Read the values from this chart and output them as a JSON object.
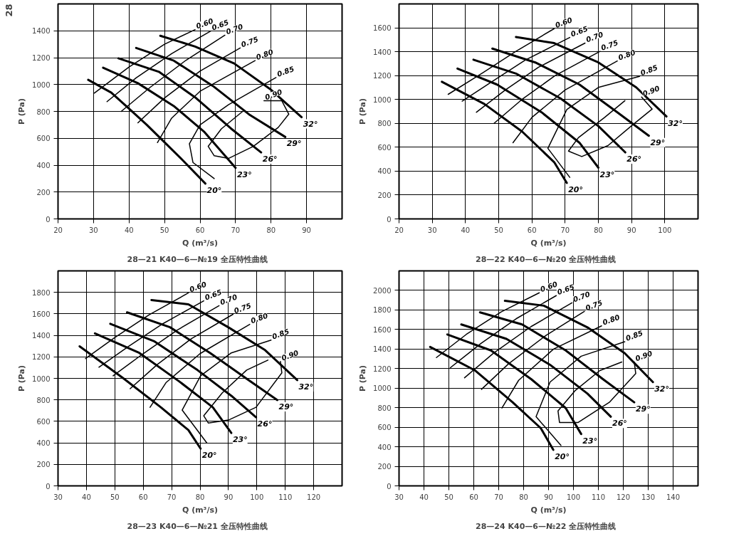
{
  "chart_data": [
    {
      "type": "line",
      "title": "28—21  K40—6—№19  全压特性曲线",
      "xlabel": "Q (m³/s)",
      "ylabel": "P (Pa)",
      "xlim": [
        20,
        100
      ],
      "ylim": [
        0,
        1600
      ],
      "xticks": [
        20,
        30,
        40,
        50,
        60,
        70,
        80,
        90
      ],
      "yticks": [
        0,
        200,
        400,
        600,
        800,
        1000,
        1200,
        1400
      ],
      "grid": true,
      "annotations": [
        "28"
      ],
      "series": [
        {
          "name": "20°",
          "color": "#000000",
          "x": [
            28.5,
            35,
            40,
            45,
            50,
            55,
            61.5
          ],
          "values": [
            1035,
            940,
            820,
            700,
            570,
            440,
            263
          ]
        },
        {
          "name": "23°",
          "color": "#000000",
          "x": [
            32.7,
            42.5,
            52.6,
            61.1,
            70
          ],
          "values": [
            1125,
            1010,
            840,
            650,
            380
          ]
        },
        {
          "name": "26°",
          "color": "#000000",
          "x": [
            37,
            48.4,
            58.6,
            68.7,
            77.2
          ],
          "values": [
            1195,
            1095,
            905,
            673,
            495
          ]
        },
        {
          "name": "29°",
          "color": "#000000",
          "x": [
            42,
            52.6,
            63.6,
            73.8,
            84
          ],
          "values": [
            1272,
            1178,
            990,
            778,
            610
          ]
        },
        {
          "name": "32°",
          "color": "#000000",
          "x": [
            48.8,
            58.6,
            69.6,
            79.7,
            88.6
          ],
          "values": [
            1363,
            1283,
            1157,
            967,
            757
          ]
        },
        {
          "name": "0.60",
          "color": "#000000",
          "x": [
            30.2,
            40,
            50,
            58.6
          ],
          "values": [
            936,
            1130,
            1300,
            1409
          ]
        },
        {
          "name": "0.65",
          "color": "#000000",
          "x": [
            33.8,
            42,
            52,
            63
          ],
          "values": [
            873,
            1050,
            1230,
            1398
          ]
        },
        {
          "name": "0.70",
          "color": "#000000",
          "x": [
            37.8,
            46,
            56,
            67
          ],
          "values": [
            800,
            980,
            1180,
            1367
          ]
        },
        {
          "name": "0.75",
          "color": "#000000",
          "x": [
            42.5,
            50,
            60,
            71.3
          ],
          "values": [
            715,
            900,
            1100,
            1272
          ]
        },
        {
          "name": "0.80",
          "color": "#000000",
          "x": [
            48,
            52,
            60,
            75.5
          ],
          "values": [
            568,
            750,
            950,
            1178
          ]
        },
        {
          "name": "0.85",
          "color": "#000000",
          "x": [
            64,
            58,
            57,
            60,
            68,
            81.4
          ],
          "values": [
            300,
            420,
            560,
            700,
            850,
            1052
          ]
        },
        {
          "name": "0.90",
          "color": "#000000",
          "x": [
            72,
            66,
            62.3,
            64,
            68,
            75,
            82,
            85,
            83,
            78
          ],
          "values": [
            800,
            670,
            540,
            470,
            450,
            540,
            680,
            780,
            880,
            880
          ]
        }
      ]
    },
    {
      "type": "line",
      "title": "28—22  K40—6—№20  全压特性曲线",
      "xlabel": "Q (m³/s)",
      "ylabel": "P (Pa)",
      "xlim": [
        20,
        110
      ],
      "ylim": [
        0,
        1800
      ],
      "xticks": [
        20,
        30,
        40,
        50,
        60,
        70,
        80,
        90,
        100
      ],
      "yticks": [
        0,
        200,
        400,
        600,
        800,
        1000,
        1200,
        1400,
        1600
      ],
      "grid": true,
      "series": [
        {
          "name": "20°",
          "color": "#000000",
          "x": [
            32.9,
            45.7,
            57.1,
            66.7,
            70.5
          ],
          "values": [
            1148,
            962,
            730,
            475,
            301
          ]
        },
        {
          "name": "23°",
          "color": "#000000",
          "x": [
            37.6,
            49.5,
            62.9,
            74.3,
            80
          ],
          "values": [
            1259,
            1125,
            893,
            638,
            429
          ]
        },
        {
          "name": "26°",
          "color": "#000000",
          "x": [
            42.4,
            55.2,
            68.6,
            80,
            88.1
          ],
          "values": [
            1333,
            1217,
            1009,
            777,
            557
          ]
        },
        {
          "name": "29°",
          "color": "#000000",
          "x": [
            48.1,
            61,
            74.3,
            85.7,
            95.2
          ],
          "values": [
            1426,
            1310,
            1125,
            893,
            696
          ]
        },
        {
          "name": "32°",
          "color": "#000000",
          "x": [
            55.2,
            66.7,
            80,
            91.4,
            100.5
          ],
          "values": [
            1523,
            1472,
            1310,
            1101,
            858
          ]
        },
        {
          "name": "0.60",
          "color": "#000000",
          "x": [
            34.8,
            45,
            55,
            66.7
          ],
          "values": [
            1043,
            1220,
            1400,
            1593
          ]
        },
        {
          "name": "0.65",
          "color": "#000000",
          "x": [
            39,
            48,
            58,
            71.4
          ],
          "values": [
            986,
            1150,
            1330,
            1519
          ]
        },
        {
          "name": "0.70",
          "color": "#000000",
          "x": [
            43.3,
            52,
            62,
            76
          ],
          "values": [
            893,
            1080,
            1270,
            1472
          ]
        },
        {
          "name": "0.75",
          "color": "#000000",
          "x": [
            48.6,
            57,
            67,
            80.5
          ],
          "values": [
            800,
            1000,
            1200,
            1403
          ]
        },
        {
          "name": "0.80",
          "color": "#000000",
          "x": [
            54.3,
            60,
            70,
            85.7
          ],
          "values": [
            638,
            850,
            1080,
            1322
          ]
        },
        {
          "name": "0.85",
          "color": "#000000",
          "x": [
            71.4,
            64.8,
            70.5,
            80,
            92.4
          ],
          "values": [
            348,
            591,
            916,
            1101,
            1194
          ]
        },
        {
          "name": "0.90",
          "color": "#000000",
          "x": [
            88,
            81.9,
            74,
            71,
            75,
            82.9,
            90,
            96.2,
            93
          ],
          "values": [
            990,
            850,
            680,
            568,
            522,
            614,
            780,
            920,
            1020
          ]
        }
      ]
    },
    {
      "type": "line",
      "title": "28—23  K40—6—№21  全压特性曲线",
      "xlabel": "Q (m³/s)",
      "ylabel": "P (Pa)",
      "xlim": [
        30,
        130
      ],
      "ylim": [
        0,
        2000
      ],
      "xticks": [
        30,
        40,
        50,
        60,
        70,
        80,
        90,
        100,
        110,
        120
      ],
      "yticks": [
        0,
        200,
        400,
        600,
        800,
        1000,
        1200,
        1400,
        1600,
        1800
      ],
      "grid": true,
      "series": [
        {
          "name": "20°",
          "color": "#000000",
          "x": [
            37.6,
            53.2,
            66.2,
            75.9,
            80.2
          ],
          "values": [
            1298,
            997,
            731,
            519,
            346
          ]
        },
        {
          "name": "23°",
          "color": "#000000",
          "x": [
            43,
            58.6,
            72.7,
            84.5,
            91
          ],
          "values": [
            1418,
            1237,
            971,
            731,
            492
          ]
        },
        {
          "name": "26°",
          "color": "#000000",
          "x": [
            48.4,
            64,
            79.1,
            91,
            99.7
          ],
          "values": [
            1508,
            1343,
            1077,
            838,
            638
          ]
        },
        {
          "name": "29°",
          "color": "#000000",
          "x": [
            54.3,
            69.4,
            83.5,
            96.4,
            107.2
          ],
          "values": [
            1614,
            1476,
            1237,
            997,
            798
          ]
        },
        {
          "name": "32°",
          "color": "#000000",
          "x": [
            62.9,
            75.9,
            89.9,
            102.9,
            114.2
          ],
          "values": [
            1729,
            1689,
            1476,
            1263,
            984
          ]
        },
        {
          "name": "0.60",
          "color": "#000000",
          "x": [
            39.7,
            50,
            62,
            75.9
          ],
          "values": [
            1184,
            1380,
            1590,
            1795
          ]
        },
        {
          "name": "0.65",
          "color": "#000000",
          "x": [
            44.4,
            55,
            67,
            81.3
          ],
          "values": [
            1104,
            1300,
            1510,
            1721
          ]
        },
        {
          "name": "0.70",
          "color": "#000000",
          "x": [
            49.4,
            60,
            72,
            86.7
          ],
          "values": [
            1024,
            1230,
            1450,
            1676
          ]
        },
        {
          "name": "0.75",
          "color": "#000000",
          "x": [
            55.4,
            65,
            77,
            91.6
          ],
          "values": [
            904,
            1130,
            1370,
            1596
          ]
        },
        {
          "name": "0.80",
          "color": "#000000",
          "x": [
            62.4,
            68,
            80,
            97.5
          ],
          "values": [
            731,
            960,
            1230,
            1503
          ]
        },
        {
          "name": "0.85",
          "color": "#000000",
          "x": [
            82.4,
            73.7,
            80.2,
            91,
            105
          ],
          "values": [
            399,
            705,
            1024,
            1237,
            1356
          ]
        },
        {
          "name": "0.90",
          "color": "#000000",
          "x": [
            103.9,
            96.4,
            87.8,
            81.3,
            82.9,
            90,
            99.7,
            108.8,
            108.3
          ],
          "values": [
            1170,
            1077,
            864,
            652,
            585,
            612,
            731,
            1051,
            1157
          ]
        }
      ]
    },
    {
      "type": "line",
      "title": "28—24  K40—6—№22  全压特性曲线",
      "xlabel": "Q (m³/s)",
      "ylabel": "P (Pa)",
      "xlim": [
        30,
        150
      ],
      "ylim": [
        0,
        2200
      ],
      "xticks": [
        30,
        40,
        50,
        60,
        70,
        80,
        90,
        100,
        110,
        120,
        130,
        140
      ],
      "yticks": [
        0,
        200,
        400,
        600,
        800,
        1000,
        1200,
        1400,
        1600,
        1800,
        2000
      ],
      "grid": true,
      "series": [
        {
          "name": "20°",
          "color": "#000000",
          "x": [
            42.5,
            60.6,
            75.6,
            86.9,
            91.9
          ],
          "values": [
            1422,
            1180,
            855,
            590,
            369
          ]
        },
        {
          "name": "23°",
          "color": "#000000",
          "x": [
            49.4,
            66.9,
            83.1,
            96.9,
            103.1
          ],
          "values": [
            1549,
            1386,
            1091,
            796,
            531
          ]
        },
        {
          "name": "26°",
          "color": "#000000",
          "x": [
            55,
            73.1,
            90.6,
            105.6,
            115
          ],
          "values": [
            1652,
            1504,
            1239,
            944,
            708
          ]
        },
        {
          "name": "29°",
          "color": "#000000",
          "x": [
            62.5,
            79.4,
            96.9,
            111.9,
            124.4
          ],
          "values": [
            1776,
            1652,
            1386,
            1091,
            855
          ]
        },
        {
          "name": "32°",
          "color": "#000000",
          "x": [
            72.5,
            88.1,
            105.6,
            120.6,
            131.9
          ],
          "values": [
            1894,
            1844,
            1622,
            1357,
            1062
          ]
        },
        {
          "name": "0.60",
          "color": "#000000",
          "x": [
            45,
            57,
            71,
            86.3
          ],
          "values": [
            1313,
            1550,
            1780,
            1976
          ]
        },
        {
          "name": "0.65",
          "color": "#000000",
          "x": [
            50.6,
            63,
            77,
            93.1
          ],
          "values": [
            1209,
            1460,
            1710,
            1947
          ]
        },
        {
          "name": "0.70",
          "color": "#000000",
          "x": [
            56.3,
            68,
            83,
            99.4
          ],
          "values": [
            1106,
            1360,
            1630,
            1873
          ]
        },
        {
          "name": "0.75",
          "color": "#000000",
          "x": [
            63.1,
            74,
            89,
            104.4
          ],
          "values": [
            988,
            1250,
            1540,
            1785
          ]
        },
        {
          "name": "0.80",
          "color": "#000000",
          "x": [
            71.3,
            78,
            92,
            111.3
          ],
          "values": [
            796,
            1080,
            1400,
            1637
          ]
        },
        {
          "name": "0.85",
          "color": "#000000",
          "x": [
            95,
            85,
            90.6,
            103.1,
            120.6
          ],
          "values": [
            413,
            708,
            1062,
            1327,
            1475
          ]
        },
        {
          "name": "0.90",
          "color": "#000000",
          "x": [
            119.4,
            110.6,
            100.6,
            93.8,
            94.4,
            101.9,
            114.4,
            125,
            124.4
          ],
          "values": [
            1268,
            1180,
            973,
            767,
            649,
            649,
            855,
            1150,
            1268
          ]
        }
      ]
    }
  ]
}
